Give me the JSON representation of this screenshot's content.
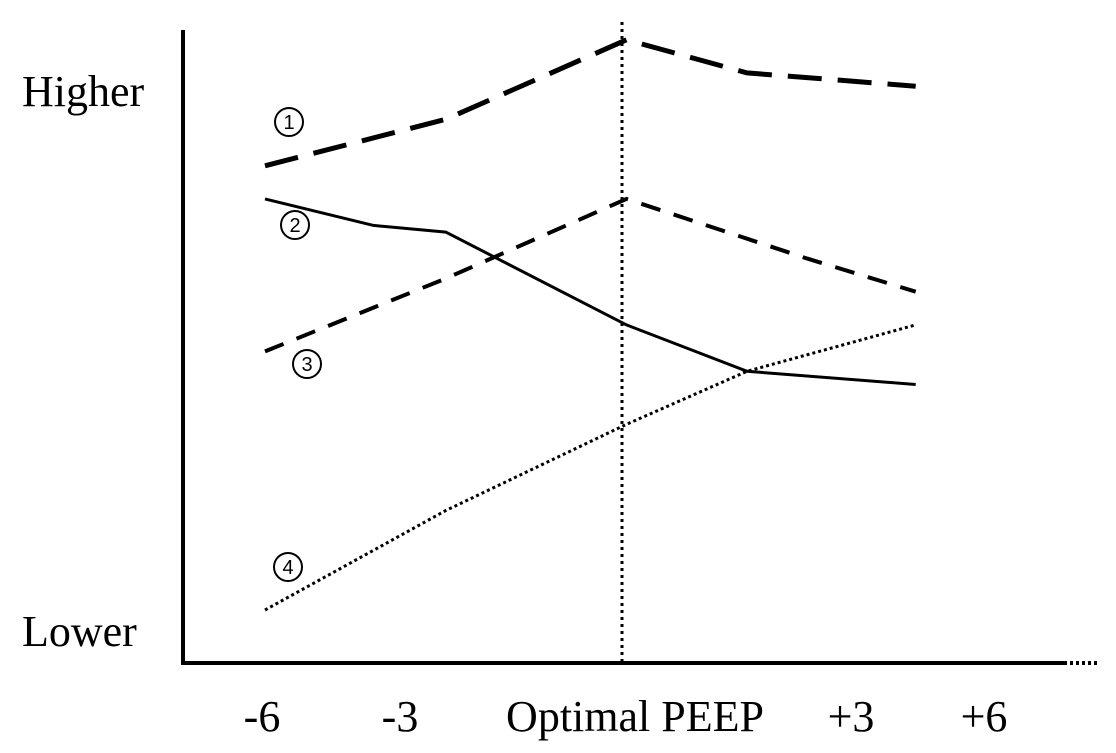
{
  "chart_data": {
    "type": "line",
    "categories": [
      "-6",
      "-3",
      "Optimal PEEP",
      "+3",
      "+6"
    ],
    "y_high_label": "Higher",
    "y_low_label": "Lower",
    "reference_line": "Optimal PEEP",
    "grid": false,
    "legend": "none",
    "series": [
      {
        "marker": "①",
        "style": "long-dash",
        "x": [
          -6,
          -3,
          0,
          2,
          4.8
        ],
        "values": [
          0.75,
          0.82,
          0.94,
          0.89,
          0.87
        ]
      },
      {
        "marker": "②",
        "style": "solid",
        "x": [
          -6,
          -4.2,
          -3,
          0,
          2,
          4.8
        ],
        "values": [
          0.7,
          0.66,
          0.65,
          0.51,
          0.44,
          0.42
        ]
      },
      {
        "marker": "③",
        "style": "dash",
        "x": [
          -6,
          -3,
          0,
          3,
          4.8
        ],
        "values": [
          0.47,
          0.58,
          0.7,
          0.61,
          0.56
        ]
      },
      {
        "marker": "④",
        "style": "dotted",
        "x": [
          -6,
          -3,
          0,
          2,
          4.8
        ],
        "values": [
          0.08,
          0.23,
          0.36,
          0.44,
          0.51
        ]
      }
    ]
  }
}
